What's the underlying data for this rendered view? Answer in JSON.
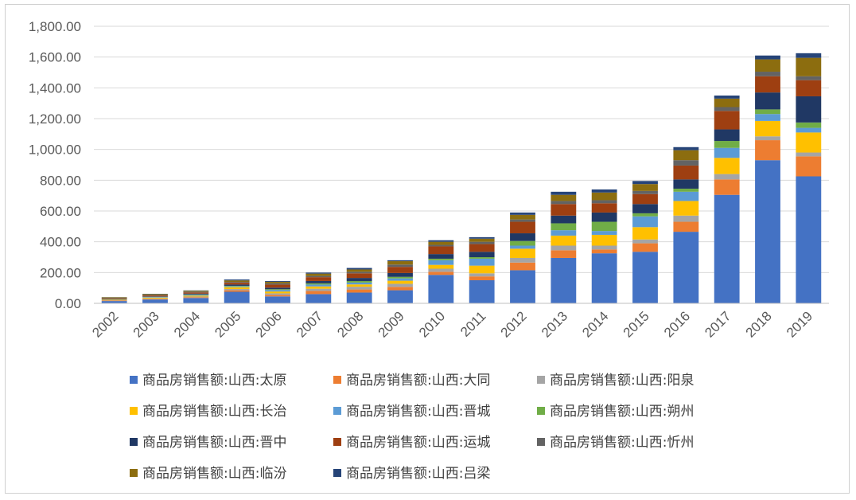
{
  "chart_data": {
    "type": "bar",
    "stacked": true,
    "title": "",
    "xlabel": "",
    "ylabel": "",
    "ylim": [
      0,
      1800
    ],
    "yticks": [
      "0.00",
      "200.00",
      "400.00",
      "600.00",
      "800.00",
      "1,000.00",
      "1,200.00",
      "1,400.00",
      "1,600.00",
      "1,800.00"
    ],
    "grid": true,
    "legend_position": "bottom",
    "categories": [
      "2002",
      "2003",
      "2004",
      "2005",
      "2006",
      "2007",
      "2008",
      "2009",
      "2010",
      "2011",
      "2012",
      "2013",
      "2014",
      "2015",
      "2016",
      "2017",
      "2018",
      "2019"
    ],
    "series": [
      {
        "name": "商品房销售额:山西:太原",
        "color": "#4472c4",
        "values": [
          15,
          25,
          35,
          75,
          45,
          60,
          70,
          85,
          185,
          150,
          215,
          295,
          325,
          335,
          465,
          705,
          930,
          825
        ]
      },
      {
        "name": "商品房销售额:山西:大同",
        "color": "#ed7d31",
        "values": [
          3,
          4,
          5,
          10,
          10,
          20,
          20,
          22,
          20,
          25,
          50,
          50,
          25,
          55,
          65,
          100,
          130,
          130
        ]
      },
      {
        "name": "商品房销售额:山西:阳泉",
        "color": "#a5a5a5",
        "values": [
          2,
          3,
          4,
          8,
          10,
          15,
          18,
          20,
          20,
          20,
          30,
          30,
          25,
          25,
          40,
          35,
          25,
          25
        ]
      },
      {
        "name": "商品房销售额:山西:长治",
        "color": "#ffc000",
        "values": [
          3,
          5,
          6,
          12,
          12,
          15,
          15,
          20,
          25,
          50,
          60,
          65,
          70,
          80,
          95,
          105,
          100,
          130
        ]
      },
      {
        "name": "商品房销售额:山西:晋城",
        "color": "#5b9bd5",
        "values": [
          2,
          3,
          5,
          5,
          10,
          12,
          12,
          15,
          30,
          45,
          20,
          35,
          25,
          70,
          60,
          65,
          45,
          30
        ]
      },
      {
        "name": "商品房销售额:山西:朔州",
        "color": "#70ad47",
        "values": [
          1,
          2,
          3,
          4,
          5,
          8,
          10,
          10,
          10,
          10,
          30,
          45,
          60,
          20,
          20,
          45,
          30,
          35
        ]
      },
      {
        "name": "商品房销售额:山西:晋中",
        "color": "#203864",
        "values": [
          2,
          3,
          5,
          8,
          10,
          15,
          20,
          25,
          30,
          35,
          50,
          50,
          60,
          60,
          60,
          75,
          110,
          170
        ]
      },
      {
        "name": "商品房销售额:山西:运城",
        "color": "#9e3f11",
        "values": [
          4,
          6,
          8,
          12,
          20,
          25,
          30,
          40,
          50,
          50,
          75,
          75,
          60,
          65,
          90,
          120,
          105,
          105
        ]
      },
      {
        "name": "商品房销售额:山西:忻州",
        "color": "#636363",
        "values": [
          2,
          3,
          5,
          5,
          8,
          8,
          10,
          15,
          10,
          15,
          15,
          20,
          20,
          20,
          35,
          25,
          30,
          25
        ]
      },
      {
        "name": "商品房销售额:山西:临汾",
        "color": "#8c6d0f",
        "values": [
          5,
          6,
          6,
          10,
          10,
          15,
          15,
          22,
          20,
          20,
          30,
          40,
          50,
          45,
          65,
          55,
          80,
          120
        ]
      },
      {
        "name": "商品房销售额:山西:吕梁",
        "color": "#264478",
        "values": [
          1,
          2,
          2,
          6,
          5,
          7,
          10,
          6,
          10,
          10,
          15,
          20,
          20,
          20,
          20,
          20,
          25,
          30
        ]
      }
    ]
  }
}
